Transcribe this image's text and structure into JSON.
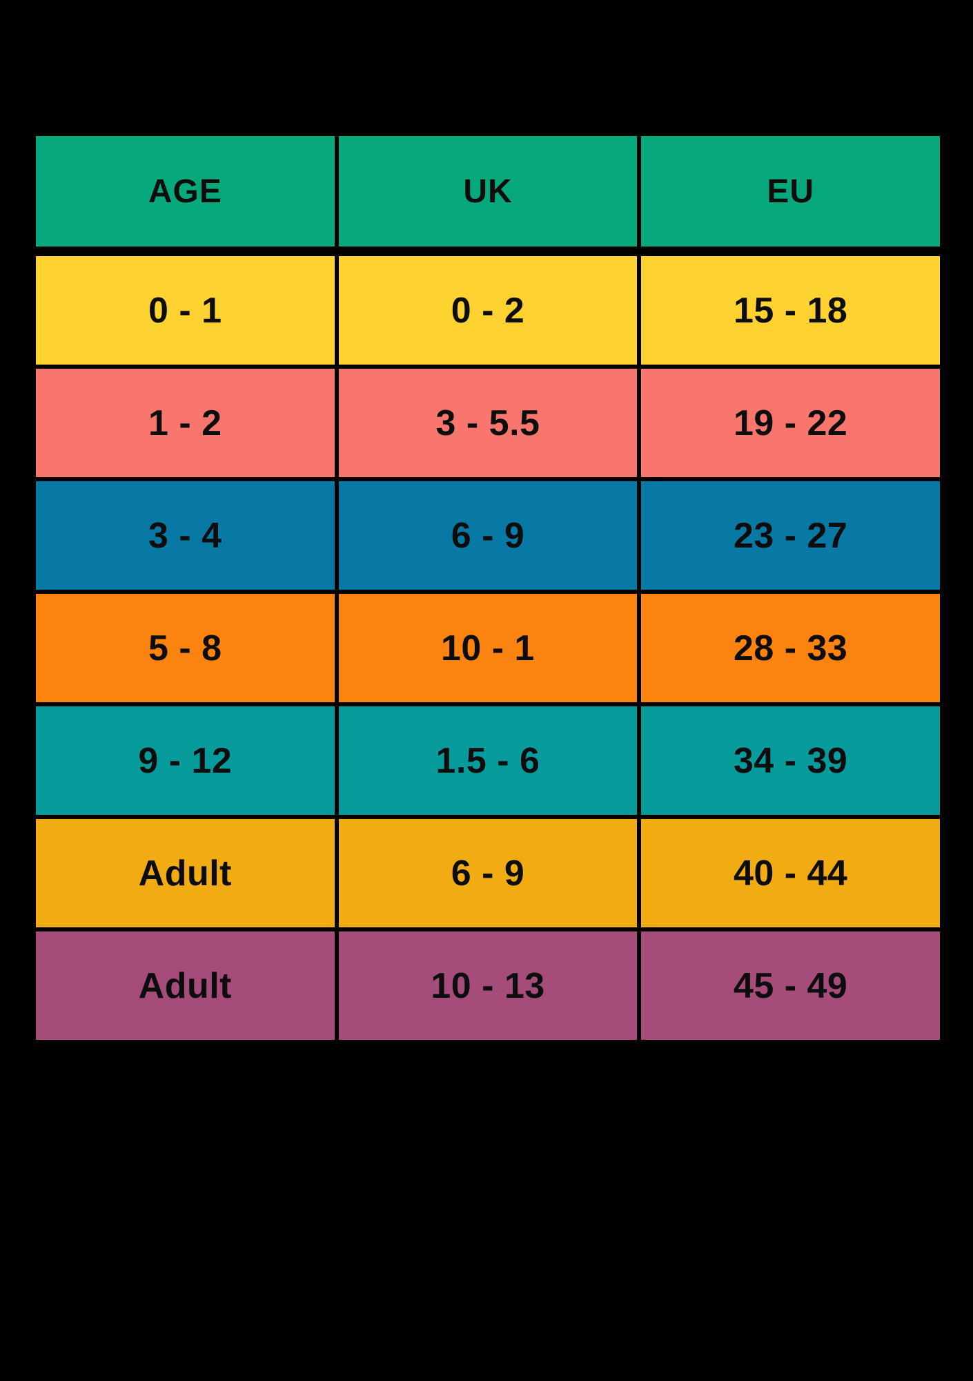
{
  "chart_data": {
    "type": "table",
    "background": "#000000",
    "text_color": "#0d0d0d",
    "header_color": "#07A87B",
    "columns": [
      "AGE",
      "UK",
      "EU"
    ],
    "row_colors": [
      "#FED230",
      "#F8766D",
      "#0878A5",
      "#FB830F",
      "#089B9B",
      "#F0AC12",
      "#A54C7B"
    ],
    "rows": [
      [
        "0 - 1",
        "0 - 2",
        "15 - 18"
      ],
      [
        "1 - 2",
        "3 - 5.5",
        "19 - 22"
      ],
      [
        "3 - 4",
        "6 - 9",
        "23 - 27"
      ],
      [
        "5 - 8",
        "10 - 1",
        "28 - 33"
      ],
      [
        "9 - 12",
        "1.5 - 6",
        "34 - 39"
      ],
      [
        "Adult",
        "6 - 9",
        "40 - 44"
      ],
      [
        "Adult",
        "10 - 13",
        "45 - 49"
      ]
    ]
  }
}
